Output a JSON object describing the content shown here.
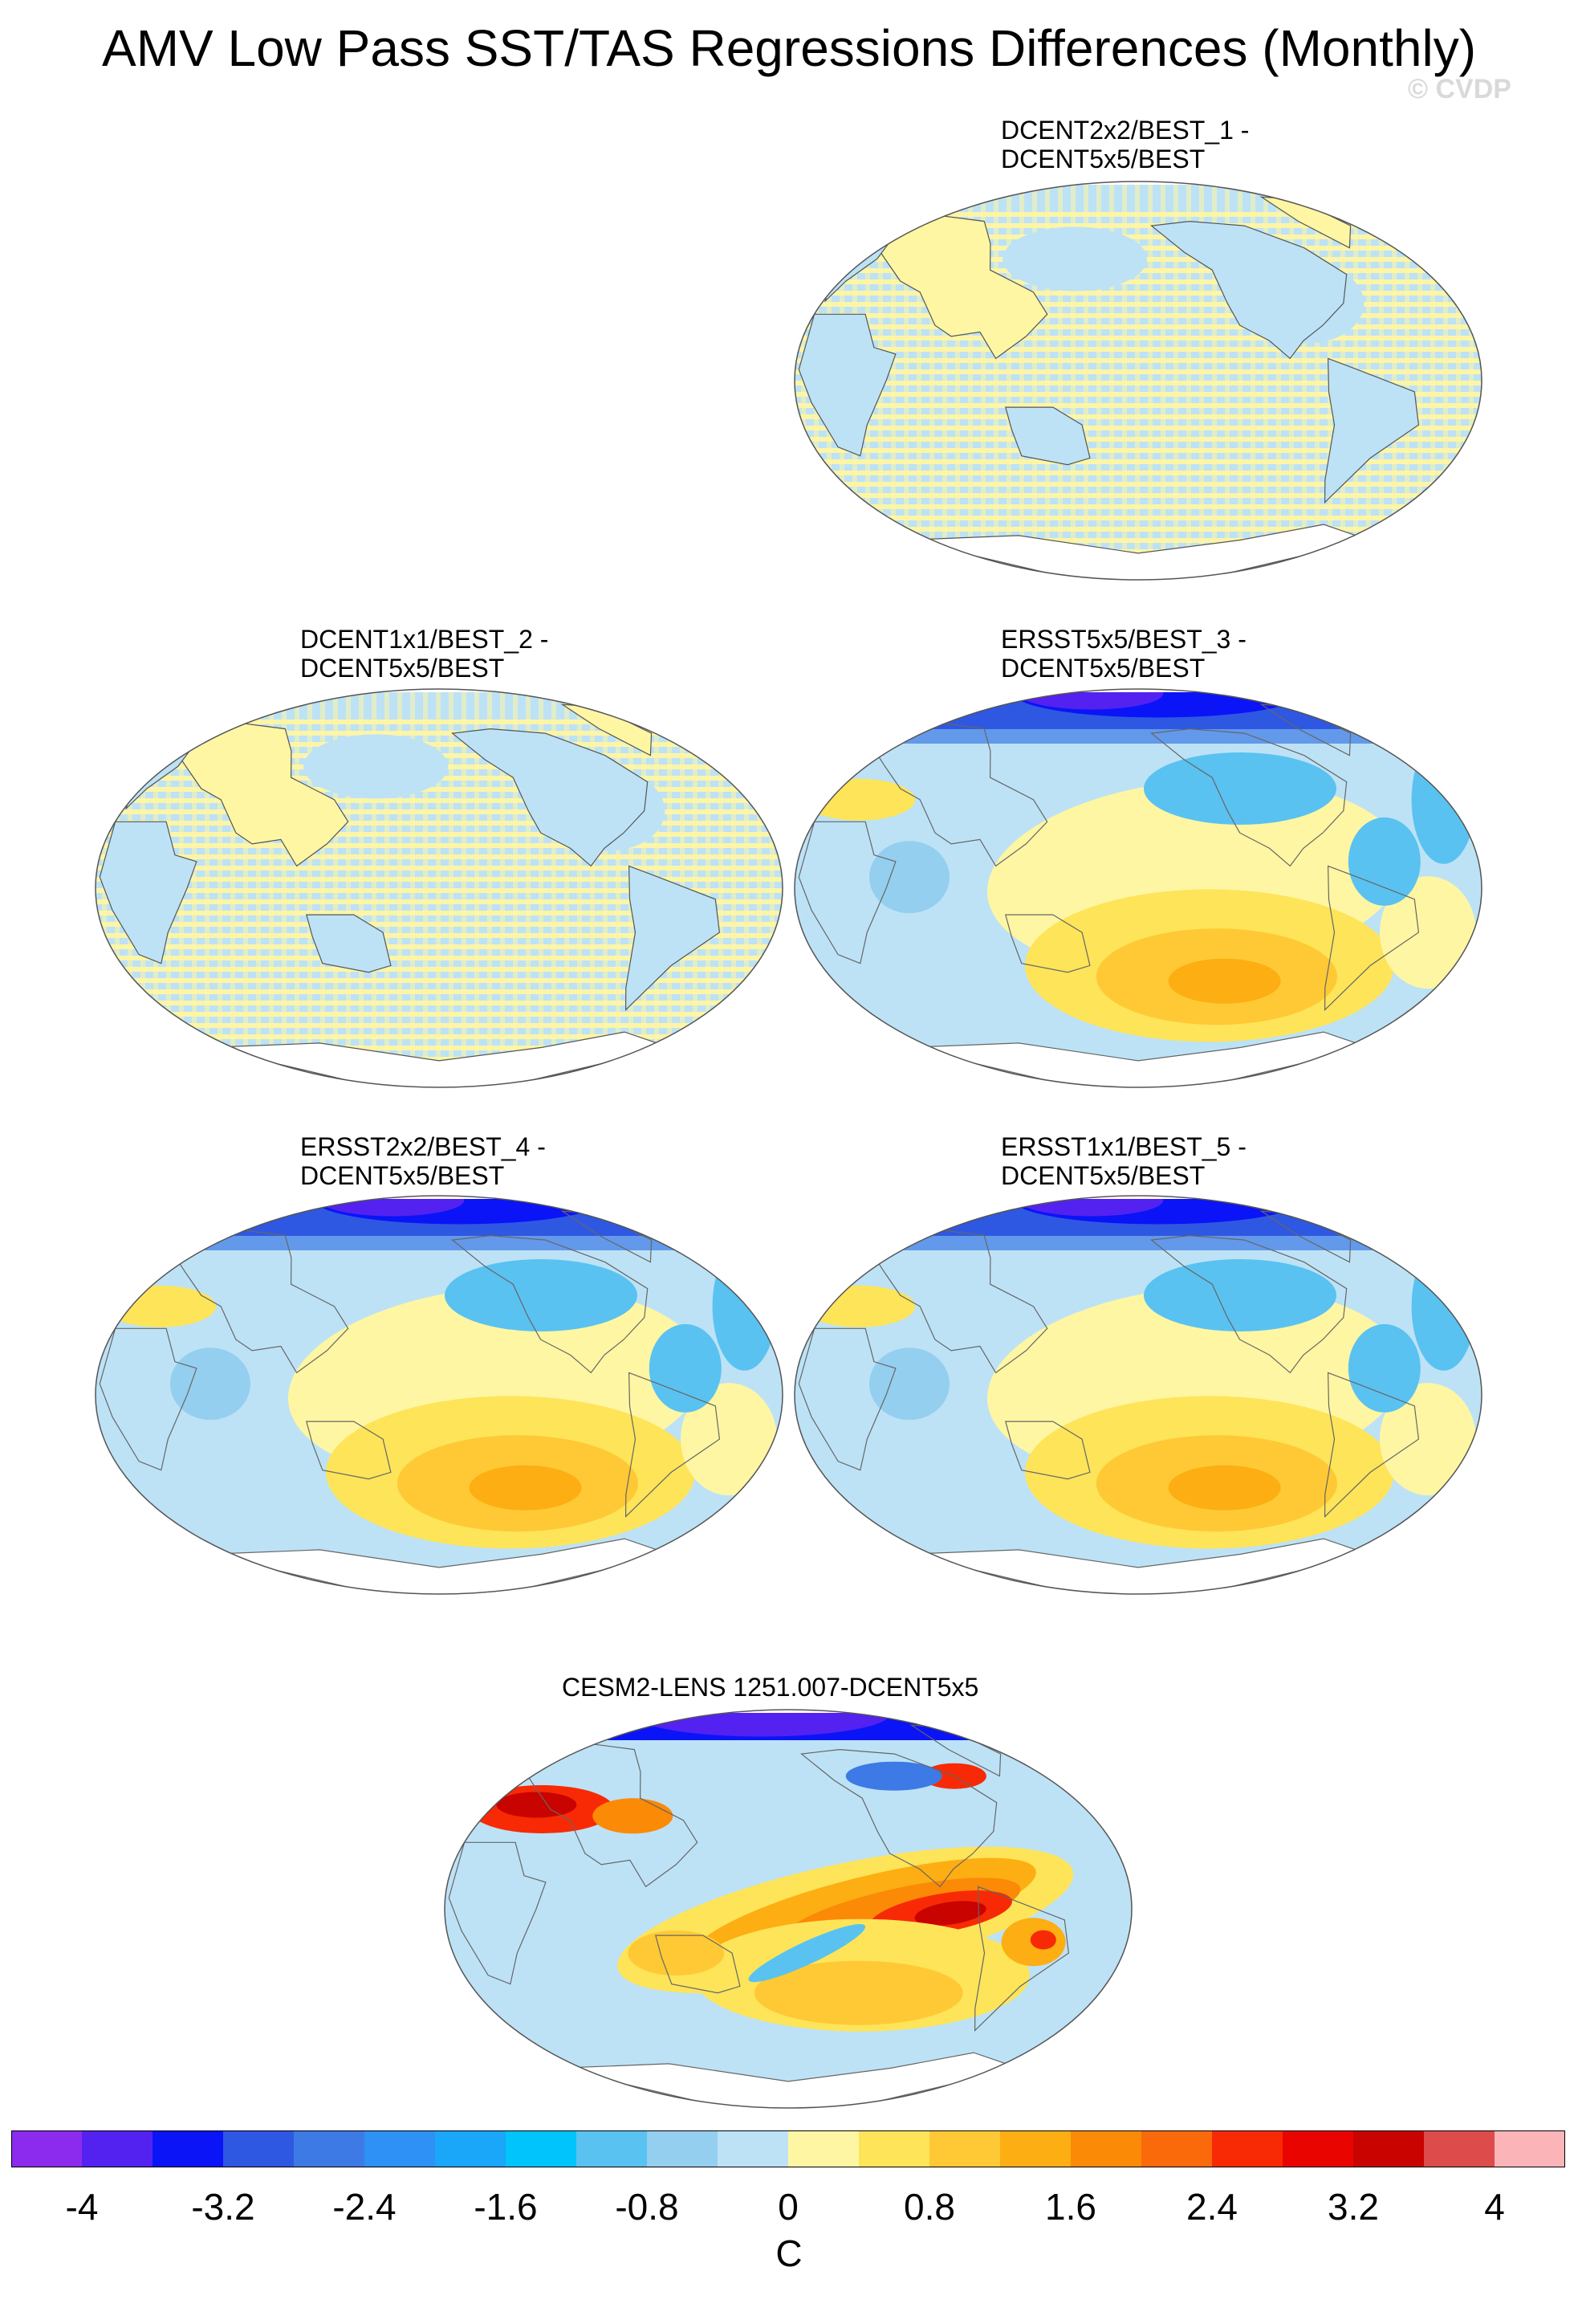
{
  "figure": {
    "title": "AMV Low Pass SST/TAS Regressions Differences (Monthly)",
    "watermark": "© CVDP"
  },
  "panels": [
    {
      "id": "p1",
      "line1": "DCENT2x2/BEST_1 -",
      "line2": "DCENT5x5/BEST",
      "pattern": "stripes"
    },
    {
      "id": "p2",
      "line1": "DCENT1x1/BEST_2 -",
      "line2": "DCENT5x5/BEST",
      "pattern": "stripes"
    },
    {
      "id": "p3",
      "line1": "ERSST5x5/BEST_3 -",
      "line2": "DCENT5x5/BEST",
      "pattern": "ersst"
    },
    {
      "id": "p4",
      "line1": "ERSST2x2/BEST_4 -",
      "line2": "DCENT5x5/BEST",
      "pattern": "ersst"
    },
    {
      "id": "p5",
      "line1": "ERSST1x1/BEST_5 -",
      "line2": "DCENT5x5/BEST",
      "pattern": "ersst"
    },
    {
      "id": "p6",
      "line1": "CESM2-LENS 1251.007-DCENT5x5",
      "line2": "",
      "pattern": "cesm"
    }
  ],
  "colorbar": {
    "units": "C",
    "labels": [
      "-4",
      "-3.2",
      "-2.4",
      "-1.6",
      "-0.8",
      "0",
      "0.8",
      "1.6",
      "2.4",
      "3.2",
      "4"
    ],
    "colors": [
      "#8c2bee",
      "#5322f0",
      "#0a14f7",
      "#2e58e2",
      "#3d7ae6",
      "#2d91f5",
      "#1aa6f9",
      "#00c4fb",
      "#59c2f1",
      "#95cfef",
      "#bde2f6",
      "#fff6a3",
      "#fde459",
      "#fec935",
      "#fcae12",
      "#fb8a07",
      "#fa6a0b",
      "#f82a05",
      "#ea0400",
      "#c80300",
      "#de4b4b",
      "#fbb5b9"
    ]
  }
}
